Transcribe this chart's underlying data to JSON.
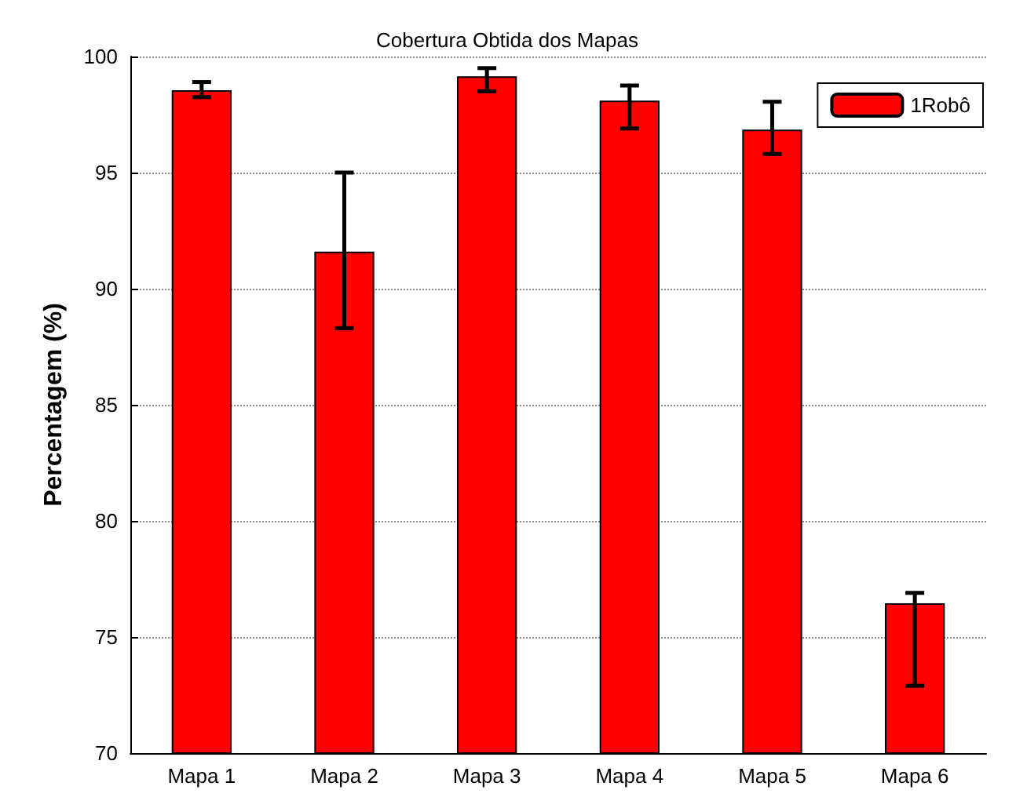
{
  "chart_data": {
    "type": "bar",
    "title": "Cobertura Obtida dos Mapas",
    "ylabel": "Percentagem (%)",
    "categories": [
      "Mapa 1",
      "Mapa 2",
      "Mapa 3",
      "Mapa 4",
      "Mapa 5",
      "Mapa 6"
    ],
    "series": [
      {
        "name": "1Robô",
        "color": "#ff0000",
        "values": [
          98.55,
          91.6,
          99.15,
          98.1,
          96.85,
          76.45
        ],
        "errors": [
          [
            98.25,
            98.9
          ],
          [
            88.3,
            95.0
          ],
          [
            98.5,
            99.5
          ],
          [
            96.9,
            98.75
          ],
          [
            95.8,
            98.05
          ],
          [
            72.9,
            76.9
          ]
        ]
      }
    ],
    "ylim": [
      70,
      100
    ],
    "yticks": [
      70,
      75,
      80,
      85,
      90,
      95,
      100
    ],
    "grid": "y",
    "legend": "top right"
  }
}
